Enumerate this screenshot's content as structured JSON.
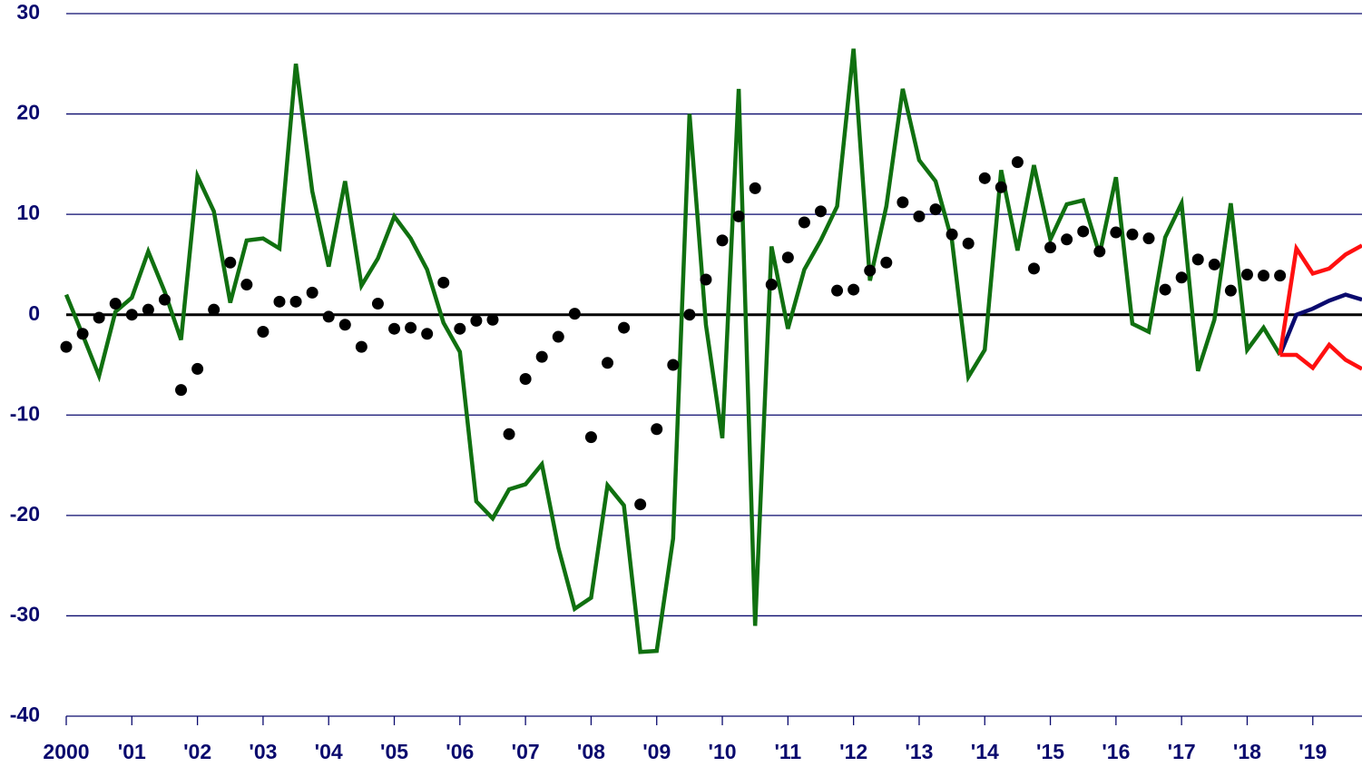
{
  "chart_data": {
    "type": "line",
    "x": [
      2000,
      2000.25,
      2000.5,
      2000.75,
      2001,
      2001.25,
      2001.5,
      2001.75,
      2002,
      2002.25,
      2002.5,
      2002.75,
      2003,
      2003.25,
      2003.5,
      2003.75,
      2004,
      2004.25,
      2004.5,
      2004.75,
      2005,
      2005.25,
      2005.5,
      2005.75,
      2006,
      2006.25,
      2006.5,
      2006.75,
      2007,
      2007.25,
      2007.5,
      2007.75,
      2008,
      2008.25,
      2008.5,
      2008.75,
      2009,
      2009.25,
      2009.5,
      2009.75,
      2010,
      2010.25,
      2010.5,
      2010.75,
      2011,
      2011.25,
      2011.5,
      2011.75,
      2012,
      2012.25,
      2012.5,
      2012.75,
      2013,
      2013.25,
      2013.5,
      2013.75,
      2014,
      2014.25,
      2014.5,
      2014.75,
      2015,
      2015.25,
      2015.5,
      2015.75,
      2016,
      2016.25,
      2016.5,
      2016.75,
      2017,
      2017.25,
      2017.5,
      2017.75,
      2018,
      2018.25,
      2018.5
    ],
    "series": [
      {
        "style": "line",
        "color": "#107010",
        "values": [
          2.0,
          -2.0,
          -6.1,
          0.3,
          1.7,
          6.3,
          2.3,
          -2.5,
          13.8,
          10.3,
          1.2,
          7.4,
          7.6,
          6.6,
          25,
          12.3,
          4.8,
          13.3,
          2.9,
          5.6,
          9.8,
          7.6,
          4.5,
          -0.8,
          -3.7,
          -18.6,
          -20.3,
          -17.4,
          -16.9,
          -14.9,
          -23.2,
          -29.3,
          -28.2,
          -17,
          -19,
          -33.6,
          -33.5,
          -22.3,
          20,
          -1,
          -12.3,
          22.5,
          -31,
          6.8,
          -1.4,
          4.5,
          7.4,
          10.8,
          26.5,
          3.4,
          10.8,
          22.5,
          15.4,
          13.3,
          7.4,
          -6.2,
          -3.5,
          14.4,
          6.4,
          14.9,
          7.5,
          11,
          11.4,
          6,
          13.7,
          -0.9,
          -1.7,
          7.7,
          11.1,
          -5.6,
          -0.5,
          11.1,
          -3.5,
          -1.3,
          -4
        ]
      },
      {
        "style": "dots",
        "color": "#000000",
        "values": [
          -3.2,
          -1.9,
          -0.3,
          1.1,
          0,
          0.5,
          1.5,
          -7.5,
          -5.4,
          0.5,
          5.2,
          3,
          -1.7,
          1.3,
          1.3,
          2.2,
          -0.2,
          -1,
          -3.2,
          1.1,
          -1.4,
          -1.3,
          -1.9,
          3.2,
          -1.4,
          -0.6,
          -0.5,
          -11.9,
          -6.4,
          -4.2,
          -2.2,
          0.1,
          -12.2,
          -4.8,
          -1.3,
          -18.9,
          -11.4,
          -5,
          0,
          3.5,
          7.4,
          9.8,
          12.6,
          3,
          5.7,
          9.2,
          10.3,
          2.4,
          2.5,
          4.4,
          5.2,
          11.2,
          9.8,
          10.5,
          8,
          7.1,
          13.6,
          12.7,
          15.2,
          4.6,
          6.7,
          7.5,
          8.3,
          6.3,
          8.2,
          8,
          7.6,
          2.5,
          3.7,
          5.5,
          5,
          2.4,
          4,
          3.9,
          3.9
        ]
      },
      {
        "style": "line",
        "color": "#0a0a6e",
        "x": [
          2018.5,
          2018.75,
          2019,
          2019.25,
          2019.5,
          2019.75
        ],
        "values": [
          -4,
          0,
          0.6,
          1.4,
          2,
          1.5
        ]
      },
      {
        "style": "line",
        "color": "#ff1010",
        "x": [
          2018.5,
          2018.75,
          2019,
          2019.25,
          2019.5,
          2019.75
        ],
        "values": [
          -4,
          6.6,
          4.1,
          4.6,
          6,
          6.9
        ]
      },
      {
        "style": "line",
        "color": "#ff1010",
        "x": [
          2018.5,
          2018.75,
          2019,
          2019.25,
          2019.5,
          2019.75
        ],
        "values": [
          -4,
          -4,
          -5.3,
          -3,
          -4.5,
          -5.4
        ]
      }
    ],
    "xlim": [
      2000,
      2019.75
    ],
    "xticks": [
      2000,
      {
        "value": 2001,
        "label": "'01"
      },
      {
        "value": 2002,
        "label": "'02"
      },
      {
        "value": 2003,
        "label": "'03"
      },
      {
        "value": 2004,
        "label": "'04"
      },
      {
        "value": 2005,
        "label": "'05"
      },
      {
        "value": 2006,
        "label": "'06"
      },
      {
        "value": 2007,
        "label": "'07"
      },
      {
        "value": 2008,
        "label": "'08"
      },
      {
        "value": 2009,
        "label": "'09"
      },
      {
        "value": 2010,
        "label": "'10"
      },
      {
        "value": 2011,
        "label": "'11"
      },
      {
        "value": 2012,
        "label": "'12"
      },
      {
        "value": 2013,
        "label": "'13"
      },
      {
        "value": 2014,
        "label": "'14"
      },
      {
        "value": 2015,
        "label": "'15"
      },
      {
        "value": 2016,
        "label": "'16"
      },
      {
        "value": 2017,
        "label": "'17"
      },
      {
        "value": 2018,
        "label": "'18"
      },
      {
        "value": 2019,
        "label": "'19"
      }
    ],
    "ylim": [
      -40,
      30
    ],
    "yticks": [
      -40,
      -30,
      -20,
      -10,
      0,
      10,
      20,
      30
    ],
    "grid": true
  }
}
